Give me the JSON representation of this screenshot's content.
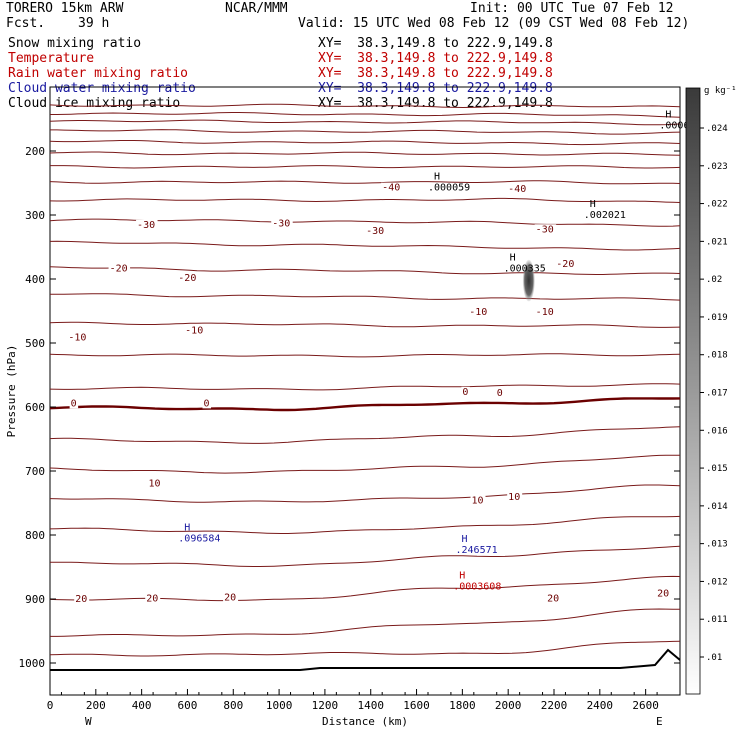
{
  "header": {
    "model": "TORERO 15km ARW",
    "org": "NCAR/MMM",
    "init": "Init: 00 UTC Tue 07 Feb 12",
    "fcst_label": "Fcst.",
    "fcst_value": "39 h",
    "valid": "Valid: 15 UTC Wed 08 Feb 12 (09 CST Wed 08 Feb 12)",
    "fields": [
      {
        "name": "Snow mixing ratio",
        "color": "#000000",
        "xy": "XY=  38.3,149.8 to 222.9,149.8"
      },
      {
        "name": "Temperature",
        "color": "#c00000",
        "xy": "XY=  38.3,149.8 to 222.9,149.8"
      },
      {
        "name": "Rain water mixing ratio",
        "color": "#c00000",
        "xy": "XY=  38.3,149.8 to 222.9,149.8"
      },
      {
        "name": "Cloud water mixing ratio",
        "color": "#1a1aa0",
        "xy": "XY=  38.3,149.8 to 222.9,149.8"
      },
      {
        "name": "Cloud ice mixing ratio",
        "color": "#000000",
        "xy": "XY=  38.3,149.8 to 222.9,149.8"
      }
    ]
  },
  "chart_data": {
    "type": "line",
    "xlabel": "Distance (km)",
    "ylabel": "Pressure (hPa)",
    "xlim": [
      0,
      2750
    ],
    "ylim": [
      1050,
      100
    ],
    "x_ticks": [
      0,
      200,
      400,
      600,
      800,
      1000,
      1200,
      1400,
      1600,
      1800,
      2000,
      2200,
      2400,
      2600
    ],
    "y_ticks": [
      200,
      300,
      400,
      500,
      600,
      700,
      800,
      900,
      1000
    ],
    "x_ends": {
      "left": "W",
      "right": "E"
    },
    "colorbar": {
      "unit": "g kg⁻¹",
      "ticks": [
        ".024",
        ".023",
        ".022",
        ".021",
        ".02",
        ".019",
        ".018",
        ".017",
        ".016",
        ".015",
        ".014",
        ".013",
        ".012",
        ".011",
        ".01"
      ]
    },
    "temperature_contours": [
      {
        "p": [
          128,
          129,
          130,
          131
        ],
        "label": ""
      },
      {
        "p": [
          141,
          142,
          143,
          145
        ],
        "label": ""
      },
      {
        "p": [
          153,
          154,
          155,
          157
        ],
        "label": ""
      },
      {
        "p": [
          168,
          169,
          170,
          172
        ],
        "label": ""
      },
      {
        "p": [
          185,
          186,
          187,
          189
        ],
        "label": ""
      },
      {
        "p": [
          203,
          204,
          204,
          206
        ],
        "label": ""
      },
      {
        "p": [
          224,
          225,
          224,
          226
        ],
        "label": ""
      },
      {
        "p": [
          248,
          249,
          248,
          251
        ],
        "label": ""
      },
      {
        "p": [
          276,
          277,
          276,
          279
        ],
        "label": ""
      },
      {
        "p": [
          308,
          309,
          312,
          316
        ],
        "label": ""
      },
      {
        "p": [
          343,
          346,
          350,
          354
        ],
        "label": ""
      },
      {
        "p": [
          382,
          386,
          390,
          393
        ],
        "label": ""
      },
      {
        "p": [
          423,
          427,
          430,
          432
        ],
        "label": ""
      },
      {
        "p": [
          468,
          471,
          473,
          474
        ],
        "label": ""
      },
      {
        "p": [
          518,
          520,
          519,
          518
        ],
        "label": ""
      },
      {
        "p": [
          571,
          572,
          568,
          564
        ],
        "label": ""
      },
      {
        "p": [
          601,
          603,
          595,
          586
        ],
        "label": ""
      },
      {
        "p": [
          651,
          655,
          645,
          632
        ],
        "label": ""
      },
      {
        "p": [
          697,
          702,
          692,
          677
        ],
        "label": ""
      },
      {
        "p": [
          742,
          749,
          740,
          722
        ],
        "label": ""
      },
      {
        "p": [
          789,
          797,
          787,
          769
        ],
        "label": ""
      },
      {
        "p": [
          843,
          848,
          834,
          818
        ],
        "label": ""
      },
      {
        "p": [
          901,
          901,
          883,
          866
        ],
        "label": ""
      },
      {
        "p": [
          958,
          955,
          938,
          916
        ],
        "label": ""
      },
      {
        "p": [
          988,
          986,
          985,
          966
        ],
        "label": ""
      }
    ],
    "contour_labels": [
      {
        "text": "-40",
        "x": 1450,
        "p": 262
      },
      {
        "text": "-40",
        "x": 2000,
        "p": 264
      },
      {
        "text": "-30",
        "x": 380,
        "p": 320
      },
      {
        "text": "-30",
        "x": 970,
        "p": 318
      },
      {
        "text": "-30",
        "x": 1380,
        "p": 330
      },
      {
        "text": "-30",
        "x": 2120,
        "p": 327
      },
      {
        "text": "-20",
        "x": 260,
        "p": 388
      },
      {
        "text": "-20",
        "x": 560,
        "p": 403
      },
      {
        "text": "-20",
        "x": 2210,
        "p": 381
      },
      {
        "text": "-10",
        "x": 80,
        "p": 496
      },
      {
        "text": "-10",
        "x": 590,
        "p": 485
      },
      {
        "text": "-10",
        "x": 1830,
        "p": 456
      },
      {
        "text": "-10",
        "x": 2120,
        "p": 456
      },
      {
        "text": "0",
        "x": 90,
        "p": 599
      },
      {
        "text": "0",
        "x": 670,
        "p": 599
      },
      {
        "text": "0",
        "x": 1800,
        "p": 581
      },
      {
        "text": "0",
        "x": 1950,
        "p": 583
      },
      {
        "text": "10",
        "x": 430,
        "p": 724
      },
      {
        "text": "10",
        "x": 1840,
        "p": 751
      },
      {
        "text": "10",
        "x": 2000,
        "p": 745
      },
      {
        "text": "20",
        "x": 110,
        "p": 905
      },
      {
        "text": "20",
        "x": 420,
        "p": 904
      },
      {
        "text": "20",
        "x": 760,
        "p": 902
      },
      {
        "text": "20",
        "x": 2170,
        "p": 904
      },
      {
        "text": "20",
        "x": 2650,
        "p": 896
      }
    ],
    "extrema": [
      {
        "text": "H",
        "sub": ".0006",
        "x": 2660,
        "p": 165,
        "color": "#000000"
      },
      {
        "text": "H",
        "sub": ".000059",
        "x": 1650,
        "p": 262,
        "color": "#000000"
      },
      {
        "text": "H",
        "sub": ".002021",
        "x": 2330,
        "p": 305,
        "color": "#000000"
      },
      {
        "text": "H",
        "sub": ".000335",
        "x": 1980,
        "p": 388,
        "color": "#000000"
      },
      {
        "text": "H",
        "sub": ".096584",
        "x": 560,
        "p": 810,
        "color": "#1a1aa0"
      },
      {
        "text": "H",
        "sub": ".246571",
        "x": 1770,
        "p": 828,
        "color": "#1a1aa0"
      },
      {
        "text": "H",
        "sub": ".0003608",
        "x": 1760,
        "p": 885,
        "color": "#c00000"
      }
    ],
    "ice_blob": {
      "x": 2090,
      "p_top": 370,
      "p_bottom": 435
    }
  }
}
